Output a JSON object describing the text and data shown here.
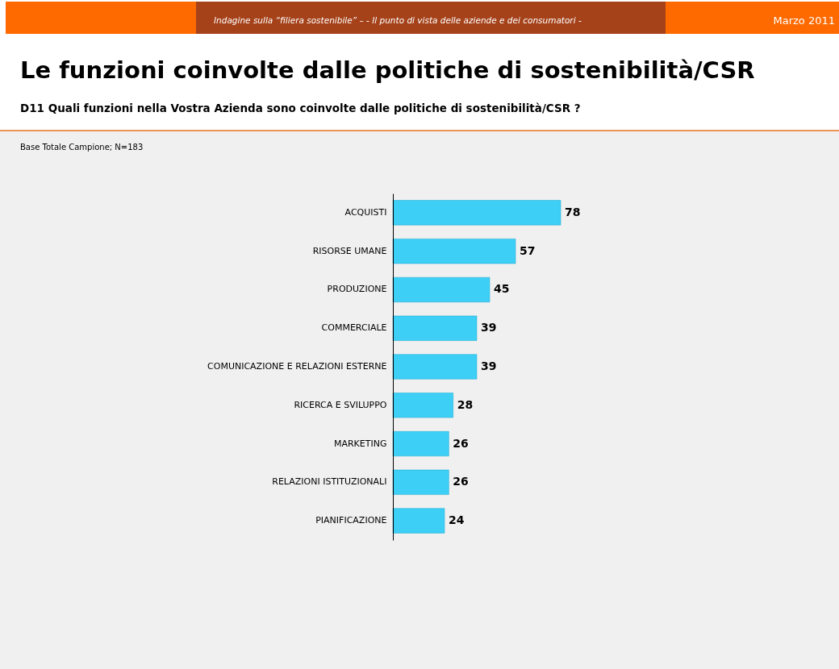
{
  "chart_data": {
    "type": "bar",
    "orientation": "horizontal",
    "title": "Le funzioni coinvolte dalle politiche di sostenibilità/CSR",
    "subtitle": "D11 Quali funzioni nella Vostra Azienda sono coinvolte dalle politiche di sostenibilità/CSR ?",
    "annotations": [
      "Indagine sulla “filiera sostenibile” – - Il punto di vista delle aziende e dei consumatori -",
      "Marzo 2011",
      "Base Totale Campione; N=183"
    ],
    "categories": [
      "ACQUISTI",
      "RISORSE UMANE",
      "PRODUZIONE",
      "COMMERCIALE",
      "COMUNICAZIONE E RELAZIONI ESTERNE",
      "RICERCA E SVILUPPO",
      "MARKETING",
      "RELAZIONI ISTITUZIONALI",
      "PIANIFICAZIONE"
    ],
    "values": [
      78,
      57,
      45,
      39,
      39,
      28,
      26,
      26,
      24
    ],
    "color": "#3dcff5",
    "data_labels": true
  }
}
